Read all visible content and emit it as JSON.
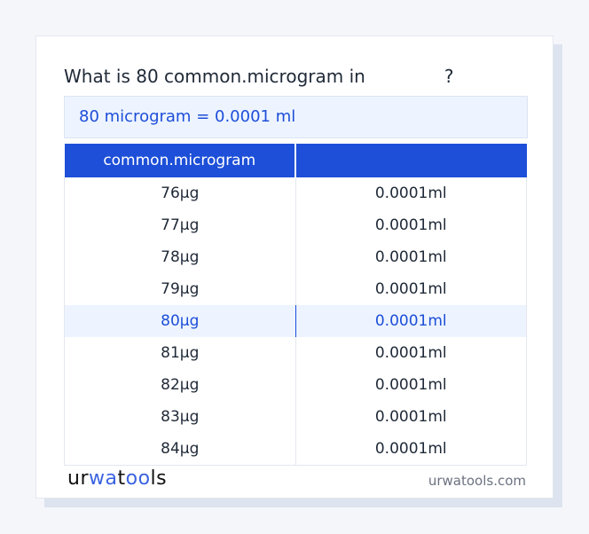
{
  "question": {
    "prefix": "What is 80 common.microgram in",
    "target_unit": "",
    "suffix": "?"
  },
  "result": "80 microgram = 0.0001 ml",
  "table": {
    "headers": [
      "common.microgram",
      ""
    ],
    "rows": [
      [
        "76µg",
        "0.0001ml"
      ],
      [
        "77µg",
        "0.0001ml"
      ],
      [
        "78µg",
        "0.0001ml"
      ],
      [
        "79µg",
        "0.0001ml"
      ],
      [
        "80µg",
        "0.0001ml"
      ],
      [
        "81µg",
        "0.0001ml"
      ],
      [
        "82µg",
        "0.0001ml"
      ],
      [
        "83µg",
        "0.0001ml"
      ],
      [
        "84µg",
        "0.0001ml"
      ]
    ],
    "highlighted_index": 4
  },
  "footer": {
    "logo": "urwatools",
    "site": "urwatools.com"
  },
  "colors": {
    "accent": "#1d4fd8",
    "highlight_bg": "#edf4ff"
  }
}
